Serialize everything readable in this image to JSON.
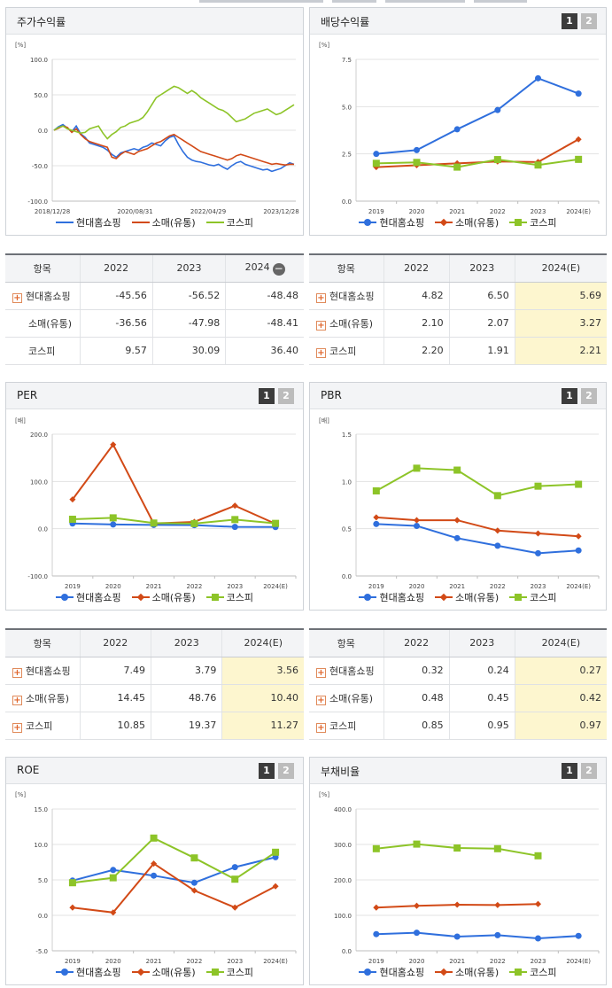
{
  "colors": {
    "blue": "#2f6fdd",
    "red": "#d24a17",
    "green": "#8dc428"
  },
  "legend": [
    "현대홈쇼핑",
    "소매(유통)",
    "코스피"
  ],
  "buttons": [
    "1",
    "2"
  ],
  "panels": {
    "stock": {
      "title": "주가수익률",
      "unit": "[%]",
      "chart_data": {
        "type": "line",
        "ylim": [
          -100,
          100
        ],
        "yticks": [
          "100.0",
          "50.0",
          "0.0",
          "-50.0",
          "-100.0"
        ],
        "xticks": [
          "2018/12/28",
          "2020/08/31",
          "2022/04/29",
          "2023/12/28"
        ],
        "series": [
          {
            "name": "현대홈쇼핑",
            "values": [
              0,
              5,
              8,
              3,
              -2,
              6,
              -5,
              -10,
              -18,
              -20,
              -22,
              -24,
              -28,
              -34,
              -38,
              -32,
              -30,
              -28,
              -26,
              -28,
              -24,
              -22,
              -18,
              -20,
              -22,
              -15,
              -10,
              -8,
              -20,
              -30,
              -38,
              -42,
              -44,
              -45,
              -47,
              -49,
              -50,
              -48,
              -52,
              -55,
              -50,
              -46,
              -44,
              -48,
              -50,
              -52,
              -54,
              -56,
              -55,
              -58,
              -56,
              -54,
              -50,
              -46,
              -48
            ]
          },
          {
            "name": "소매(유통)",
            "values": [
              0,
              3,
              6,
              4,
              -3,
              2,
              -6,
              -12,
              -16,
              -18,
              -20,
              -22,
              -24,
              -38,
              -40,
              -34,
              -30,
              -32,
              -34,
              -30,
              -28,
              -26,
              -22,
              -18,
              -16,
              -12,
              -8,
              -6,
              -10,
              -14,
              -18,
              -22,
              -26,
              -30,
              -32,
              -34,
              -36,
              -38,
              -40,
              -42,
              -40,
              -36,
              -34,
              -36,
              -38,
              -40,
              -42,
              -44,
              -46,
              -48,
              -47,
              -48,
              -49,
              -48,
              -48
            ]
          },
          {
            "name": "코스피",
            "values": [
              0,
              4,
              6,
              2,
              0,
              -2,
              -4,
              -3,
              2,
              4,
              6,
              -4,
              -12,
              -6,
              -2,
              4,
              6,
              10,
              12,
              14,
              18,
              26,
              36,
              46,
              50,
              54,
              58,
              62,
              60,
              56,
              52,
              56,
              52,
              46,
              42,
              38,
              34,
              30,
              28,
              24,
              18,
              12,
              14,
              16,
              20,
              24,
              26,
              28,
              30,
              26,
              22,
              24,
              28,
              32,
              36
            ]
          }
        ]
      }
    },
    "dividend": {
      "title": "배당수익률",
      "unit": "[%]",
      "chart_data": {
        "type": "line",
        "categories": [
          "2019",
          "2020",
          "2021",
          "2022",
          "2023",
          "2024(E)"
        ],
        "ylim": [
          0,
          7.5
        ],
        "yticks": [
          "7.5",
          "5.0",
          "2.5",
          "0.0"
        ],
        "series": [
          {
            "name": "현대홈쇼핑",
            "values": [
              2.5,
              2.7,
              3.8,
              4.82,
              6.5,
              5.69
            ]
          },
          {
            "name": "소매(유통)",
            "values": [
              1.8,
              1.9,
              2.0,
              2.1,
              2.07,
              3.27
            ]
          },
          {
            "name": "코스피",
            "values": [
              2.0,
              2.05,
              1.8,
              2.2,
              1.91,
              2.21
            ]
          }
        ]
      }
    },
    "per": {
      "title": "PER",
      "unit": "[배]",
      "chart_data": {
        "type": "line",
        "categories": [
          "2019",
          "2020",
          "2021",
          "2022",
          "2023",
          "2024(E)"
        ],
        "ylim": [
          -100,
          200
        ],
        "yticks": [
          "200.0",
          "100.0",
          "0.0",
          "-100.0"
        ],
        "series": [
          {
            "name": "현대홈쇼핑",
            "values": [
              11,
              9,
              8,
              7.49,
              3.79,
              3.56
            ]
          },
          {
            "name": "소매(유통)",
            "values": [
              62,
              178,
              11,
              14.45,
              48.76,
              10.4
            ]
          },
          {
            "name": "코스피",
            "values": [
              20,
              23,
              12,
              10.85,
              19.37,
              11.27
            ]
          }
        ]
      }
    },
    "pbr": {
      "title": "PBR",
      "unit": "[배]",
      "chart_data": {
        "type": "line",
        "categories": [
          "2019",
          "2020",
          "2021",
          "2022",
          "2023",
          "2024(E)"
        ],
        "ylim": [
          0,
          1.5
        ],
        "yticks": [
          "1.5",
          "1.0",
          "0.5",
          "0.0"
        ],
        "series": [
          {
            "name": "현대홈쇼핑",
            "values": [
              0.55,
              0.53,
              0.4,
              0.32,
              0.24,
              0.27
            ]
          },
          {
            "name": "소매(유통)",
            "values": [
              0.62,
              0.59,
              0.59,
              0.48,
              0.45,
              0.42
            ]
          },
          {
            "name": "코스피",
            "values": [
              0.9,
              1.14,
              1.12,
              0.85,
              0.95,
              0.97
            ]
          }
        ]
      }
    },
    "roe": {
      "title": "ROE",
      "unit": "[%]",
      "chart_data": {
        "type": "line",
        "categories": [
          "2019",
          "2020",
          "2021",
          "2022",
          "2023",
          "2024(E)"
        ],
        "ylim": [
          -5,
          15
        ],
        "yticks": [
          "15.0",
          "10.0",
          "5.0",
          "0.0",
          "-5.0"
        ],
        "series": [
          {
            "name": "현대홈쇼핑",
            "values": [
              4.9,
              6.4,
              5.6,
              4.6,
              6.8,
              8.2
            ]
          },
          {
            "name": "소매(유통)",
            "values": [
              1.1,
              0.4,
              7.3,
              3.5,
              1.1,
              4.1
            ]
          },
          {
            "name": "코스피",
            "values": [
              4.6,
              5.3,
              10.9,
              8.1,
              5.1,
              8.9
            ]
          }
        ]
      }
    },
    "debt": {
      "title": "부채비율",
      "unit": "[%]",
      "chart_data": {
        "type": "line",
        "categories": [
          "2019",
          "2020",
          "2021",
          "2022",
          "2023",
          "2024(E)"
        ],
        "ylim": [
          0,
          400
        ],
        "yticks": [
          "400.0",
          "300.0",
          "200.0",
          "100.0",
          "0.0"
        ],
        "series": [
          {
            "name": "현대홈쇼핑",
            "values": [
              47,
              51,
              40,
              44,
              35,
              42
            ]
          },
          {
            "name": "소매(유통)",
            "values": [
              122,
              127,
              130,
              129,
              132,
              null
            ]
          },
          {
            "name": "코스피",
            "values": [
              288,
              301,
              290,
              288,
              268,
              null
            ]
          }
        ]
      }
    }
  },
  "tables": {
    "stock": {
      "headers": [
        "항목",
        "2022",
        "2023",
        "2024"
      ],
      "rows": [
        {
          "label": "현대홈쇼핑",
          "vals": [
            "-45.56",
            "-56.52",
            "-48.48"
          ],
          "plus": true
        },
        {
          "label": "소매(유통)",
          "vals": [
            "-36.56",
            "-47.98",
            "-48.41"
          ],
          "plus": false
        },
        {
          "label": "코스피",
          "vals": [
            "9.57",
            "30.09",
            "36.40"
          ],
          "plus": false
        }
      ]
    },
    "dividend": {
      "headers": [
        "항목",
        "2022",
        "2023",
        "2024(E)"
      ],
      "rows": [
        {
          "label": "현대홈쇼핑",
          "vals": [
            "4.82",
            "6.50",
            "5.69"
          ],
          "plus": true
        },
        {
          "label": "소매(유통)",
          "vals": [
            "2.10",
            "2.07",
            "3.27"
          ],
          "plus": true
        },
        {
          "label": "코스피",
          "vals": [
            "2.20",
            "1.91",
            "2.21"
          ],
          "plus": true
        }
      ]
    },
    "per": {
      "headers": [
        "항목",
        "2022",
        "2023",
        "2024(E)"
      ],
      "rows": [
        {
          "label": "현대홈쇼핑",
          "vals": [
            "7.49",
            "3.79",
            "3.56"
          ],
          "plus": true
        },
        {
          "label": "소매(유통)",
          "vals": [
            "14.45",
            "48.76",
            "10.40"
          ],
          "plus": true
        },
        {
          "label": "코스피",
          "vals": [
            "10.85",
            "19.37",
            "11.27"
          ],
          "plus": true
        }
      ]
    },
    "pbr": {
      "headers": [
        "항목",
        "2022",
        "2023",
        "2024(E)"
      ],
      "rows": [
        {
          "label": "현대홈쇼핑",
          "vals": [
            "0.32",
            "0.24",
            "0.27"
          ],
          "plus": true
        },
        {
          "label": "소매(유통)",
          "vals": [
            "0.48",
            "0.45",
            "0.42"
          ],
          "plus": true
        },
        {
          "label": "코스피",
          "vals": [
            "0.85",
            "0.95",
            "0.97"
          ],
          "plus": true
        }
      ]
    }
  }
}
